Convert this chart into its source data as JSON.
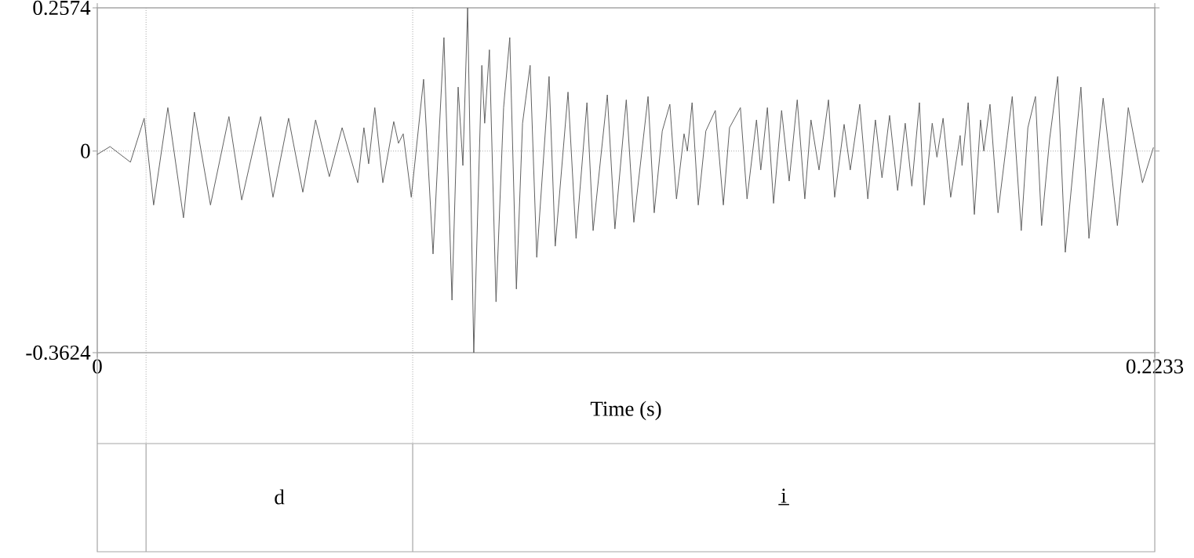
{
  "chart_data": {
    "type": "line",
    "xlabel": "Time (s)",
    "color": "#606060",
    "marker": "none",
    "line_style": "solid",
    "xlim": [
      0,
      0.2233
    ],
    "ylim": [
      -0.3624,
      0.2574
    ],
    "xticks": [
      0,
      0.2233
    ],
    "yticks": [
      -0.3624,
      0,
      0.2574
    ],
    "x": [
      0,
      0.0027,
      0.007,
      0.0099,
      0.0119,
      0.0149,
      0.0182,
      0.0205,
      0.0239,
      0.0278,
      0.0305,
      0.0345,
      0.0371,
      0.0404,
      0.0434,
      0.0461,
      0.049,
      0.0517,
      0.055,
      0.0563,
      0.0573,
      0.0586,
      0.0603,
      0.0626,
      0.0636,
      0.0646,
      0.0663,
      0.0689,
      0.0709,
      0.0732,
      0.0749,
      0.0762,
      0.0772,
      0.0782,
      0.0795,
      0.0812,
      0.0818,
      0.0828,
      0.0842,
      0.0858,
      0.0871,
      0.0885,
      0.0898,
      0.0914,
      0.0928,
      0.0954,
      0.0967,
      0.0994,
      0.1011,
      0.1034,
      0.1047,
      0.1077,
      0.1093,
      0.1117,
      0.1133,
      0.1163,
      0.1176,
      0.1193,
      0.1209,
      0.1223,
      0.1239,
      0.1246,
      0.1256,
      0.1269,
      0.1285,
      0.1305,
      0.1322,
      0.1335,
      0.1358,
      0.1372,
      0.1392,
      0.1401,
      0.1415,
      0.1428,
      0.1445,
      0.1461,
      0.1478,
      0.1494,
      0.1507,
      0.1524,
      0.1544,
      0.1557,
      0.1577,
      0.159,
      0.161,
      0.1627,
      0.1643,
      0.1657,
      0.1673,
      0.169,
      0.1706,
      0.172,
      0.1736,
      0.1746,
      0.1763,
      0.1773,
      0.1786,
      0.1802,
      0.1822,
      0.1826,
      0.1839,
      0.1852,
      0.1865,
      0.1872,
      0.1885,
      0.1902,
      0.1922,
      0.1932,
      0.1951,
      0.1965,
      0.1981,
      0.1994,
      0.2011,
      0.2028,
      0.2044,
      0.2077,
      0.2094,
      0.2124,
      0.2154,
      0.2177,
      0.2207,
      0.223
    ],
    "values": [
      -0.006,
      0.008,
      -0.02,
      0.059,
      -0.097,
      0.078,
      -0.12,
      0.07,
      -0.097,
      0.062,
      -0.088,
      0.062,
      -0.083,
      0.059,
      -0.074,
      0.056,
      -0.046,
      0.042,
      -0.057,
      0.042,
      -0.023,
      0.078,
      -0.057,
      0.053,
      0.014,
      0.031,
      -0.083,
      0.129,
      -0.185,
      0.204,
      -0.268,
      0.115,
      -0.026,
      0.2574,
      -0.3624,
      0.154,
      0.05,
      0.182,
      -0.271,
      0.078,
      0.204,
      -0.248,
      0.05,
      0.154,
      -0.191,
      0.134,
      -0.171,
      0.106,
      -0.157,
      0.087,
      -0.143,
      0.101,
      -0.14,
      0.092,
      -0.128,
      0.098,
      -0.111,
      0.036,
      0.084,
      -0.086,
      0.031,
      0.0,
      0.087,
      -0.097,
      0.036,
      0.073,
      -0.097,
      0.042,
      0.078,
      -0.086,
      0.056,
      -0.034,
      0.078,
      -0.094,
      0.073,
      -0.054,
      0.092,
      -0.086,
      0.056,
      -0.034,
      0.092,
      -0.083,
      0.048,
      -0.034,
      0.084,
      -0.086,
      0.056,
      -0.048,
      0.064,
      -0.071,
      0.05,
      -0.063,
      0.087,
      -0.097,
      0.05,
      -0.011,
      0.059,
      -0.083,
      0.028,
      -0.026,
      0.087,
      -0.114,
      0.056,
      0.0,
      0.084,
      -0.111,
      0.028,
      0.098,
      -0.143,
      0.042,
      0.098,
      -0.134,
      0.022,
      0.134,
      -0.182,
      0.115,
      -0.157,
      0.095,
      -0.134,
      0.078,
      -0.057,
      0.006
    ],
    "ref_lines": [
      {
        "axis": "y",
        "value": 0,
        "line_style": "dotted"
      },
      {
        "axis": "x",
        "value": 0.0103,
        "line_style": "dotted"
      },
      {
        "axis": "x",
        "value": 0.0666,
        "line_style": "dotted"
      }
    ],
    "annotations": [
      "d",
      "i̲"
    ]
  }
}
